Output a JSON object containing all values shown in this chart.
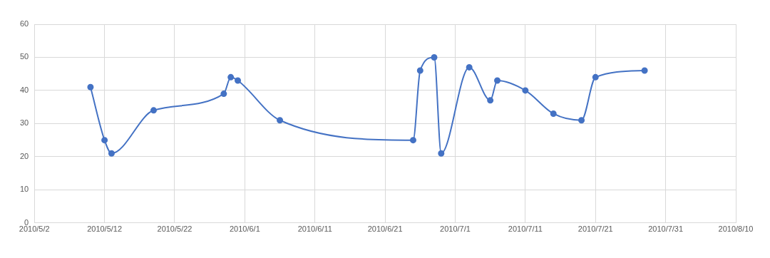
{
  "chart_data": {
    "type": "line",
    "x": [
      "2010-05-10",
      "2010-05-12",
      "2010-05-13",
      "2010-05-19",
      "2010-05-29",
      "2010-05-30",
      "2010-05-31",
      "2010-06-06",
      "2010-06-25",
      "2010-06-26",
      "2010-06-28",
      "2010-06-29",
      "2010-07-03",
      "2010-07-06",
      "2010-07-07",
      "2010-07-11",
      "2010-07-15",
      "2010-07-19",
      "2010-07-21",
      "2010-07-28"
    ],
    "series": [
      {
        "color": "#4472c4",
        "values": [
          41,
          25,
          21,
          34,
          39,
          44,
          43,
          31,
          25,
          46,
          50,
          21,
          47,
          37,
          43,
          40,
          33,
          31,
          44,
          46
        ]
      }
    ],
    "xlim": [
      "2010-05-02",
      "2010-08-10"
    ],
    "xticks": [
      {
        "value": "2010-05-02",
        "label": "2010/5/2"
      },
      {
        "value": "2010-05-12",
        "label": "2010/5/12"
      },
      {
        "value": "2010-05-22",
        "label": "2010/5/22"
      },
      {
        "value": "2010-06-01",
        "label": "2010/6/1"
      },
      {
        "value": "2010-06-11",
        "label": "2010/6/11"
      },
      {
        "value": "2010-06-21",
        "label": "2010/6/21"
      },
      {
        "value": "2010-07-01",
        "label": "2010/7/1"
      },
      {
        "value": "2010-07-11",
        "label": "2010/7/11"
      },
      {
        "value": "2010-07-21",
        "label": "2010/7/21"
      },
      {
        "value": "2010-07-31",
        "label": "2010/7/31"
      },
      {
        "value": "2010-08-10",
        "label": "2010/8/10"
      }
    ],
    "ylim": [
      0,
      60
    ],
    "yticks": [
      0,
      10,
      20,
      30,
      40,
      50,
      60
    ],
    "grid": true,
    "marker": "circle",
    "line_style": "solid",
    "legend": false
  }
}
